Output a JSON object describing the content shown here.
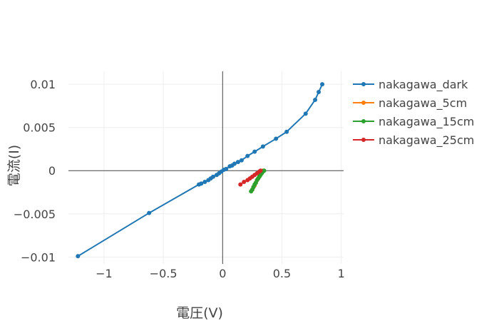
{
  "chart_data": {
    "type": "line",
    "title": "",
    "xlabel": "電圧(V)",
    "ylabel": "電流(I)",
    "xlim": [
      -1.3,
      1.02
    ],
    "ylim": [
      -0.0108,
      0.0115
    ],
    "x_ticks": [
      {
        "value": -1,
        "label": "−1"
      },
      {
        "value": -0.5,
        "label": "−0.5"
      },
      {
        "value": 0,
        "label": "0"
      },
      {
        "value": 0.5,
        "label": "0.5"
      },
      {
        "value": 1,
        "label": "1"
      }
    ],
    "y_ticks": [
      {
        "value": -0.01,
        "label": "−0.01"
      },
      {
        "value": -0.005,
        "label": "−0.005"
      },
      {
        "value": 0,
        "label": "0"
      },
      {
        "value": 0.005,
        "label": "0.005"
      },
      {
        "value": 0.01,
        "label": "0.01"
      }
    ],
    "grid": true,
    "legend_position": "top-right",
    "series": [
      {
        "name": "nakagawa_dark",
        "color": "#1f77b4",
        "x": [
          -1.22,
          -0.62,
          -0.2,
          -0.18,
          -0.15,
          -0.12,
          -0.1,
          -0.08,
          -0.05,
          -0.03,
          -0.01,
          0.01,
          0.03,
          0.06,
          0.08,
          0.1,
          0.13,
          0.16,
          0.21,
          0.27,
          0.34,
          0.45,
          0.54,
          0.7,
          0.78,
          0.81,
          0.84
        ],
        "y": [
          -0.0099,
          -0.0049,
          -0.0016,
          -0.0015,
          -0.0013,
          -0.0011,
          -0.0009,
          -0.0007,
          -0.0005,
          -0.0003,
          -0.0001,
          0.0001,
          0.0002,
          0.0005,
          0.0006,
          0.0008,
          0.001,
          0.0012,
          0.0017,
          0.0022,
          0.0028,
          0.0037,
          0.0045,
          0.0066,
          0.0082,
          0.0091,
          0.01
        ]
      },
      {
        "name": "nakagawa_5cm",
        "color": "#ff7f0e",
        "x": [
          0.25,
          0.26,
          0.27,
          0.28,
          0.29,
          0.3,
          0.31,
          0.32,
          0.33,
          0.34
        ],
        "y": [
          -0.0022,
          -0.0019,
          -0.0017,
          -0.0014,
          -0.0011,
          -0.0009,
          -0.0006,
          -0.0004,
          -0.0002,
          0.0
        ]
      },
      {
        "name": "nakagawa_15cm",
        "color": "#2ca02c",
        "x": [
          0.24,
          0.25,
          0.26,
          0.27,
          0.28,
          0.29,
          0.3,
          0.31,
          0.32,
          0.33,
          0.34,
          0.35
        ],
        "y": [
          -0.0024,
          -0.0022,
          -0.0019,
          -0.0016,
          -0.0014,
          -0.0011,
          -0.0009,
          -0.0007,
          -0.0005,
          -0.0003,
          -0.0001,
          0.0
        ]
      },
      {
        "name": "nakagawa_25cm",
        "color": "#d62728",
        "x": [
          0.15,
          0.18,
          0.21,
          0.23,
          0.25,
          0.27,
          0.29,
          0.31,
          0.32
        ],
        "y": [
          -0.0016,
          -0.0013,
          -0.0011,
          -0.0009,
          -0.0007,
          -0.0005,
          -0.0003,
          -0.0001,
          0.0
        ]
      }
    ]
  }
}
